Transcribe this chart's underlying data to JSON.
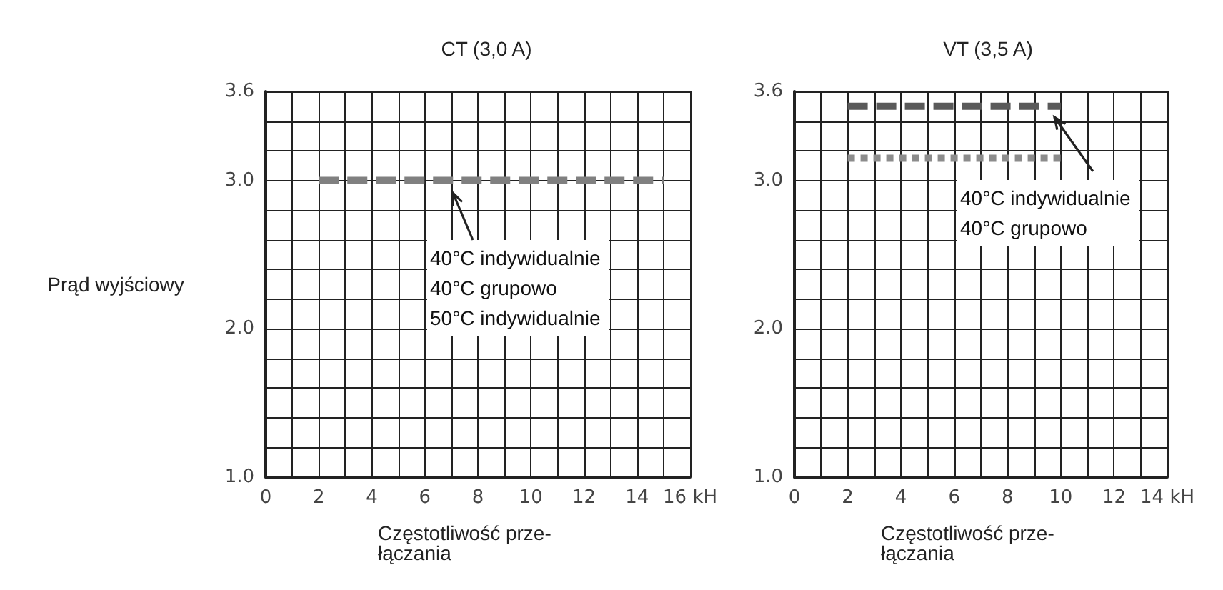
{
  "chart_data": [
    {
      "type": "line",
      "title": "CT (3,0 A)",
      "ylabel": "Prąd wyjściowy",
      "xlabel": "Częstotliwość prze-\nłączania",
      "xlim": [
        0,
        16
      ],
      "xticks": [
        0,
        {
          "value": 1,
          "label": null
        },
        2,
        {
          "value": 3,
          "label": null
        },
        4,
        {
          "value": 5,
          "label": null
        },
        6,
        {
          "value": 7,
          "label": null
        },
        8,
        {
          "value": 9,
          "label": null
        },
        10,
        {
          "value": 11,
          "label": null
        },
        12,
        {
          "value": 13,
          "label": null
        },
        14,
        {
          "value": 15,
          "label": null
        },
        {
          "value": 16,
          "label": "16 kH"
        }
      ],
      "ylim": [
        1.0,
        3.6
      ],
      "yticks": [
        {
          "value": 1.0,
          "label": "1.0"
        },
        {
          "value": 1.2,
          "label": null
        },
        {
          "value": 1.4,
          "label": null
        },
        {
          "value": 1.6,
          "label": null
        },
        {
          "value": 1.8,
          "label": null
        },
        {
          "value": 2.0,
          "label": "2.0"
        },
        {
          "value": 2.2,
          "label": null
        },
        {
          "value": 2.4,
          "label": null
        },
        {
          "value": 2.6,
          "label": null
        },
        {
          "value": 2.8,
          "label": null
        },
        {
          "value": 3.0,
          "label": "3.0"
        },
        {
          "value": 3.2,
          "label": null
        },
        {
          "value": 3.4,
          "label": null
        },
        3.6
      ],
      "grid": true,
      "line_style": "dashed",
      "series": [
        {
          "color": "#808080",
          "x": [
            2,
            15
          ],
          "values": [
            3.0,
            3.0
          ]
        }
      ],
      "annotations": [
        "40°C indywidualnie\n40°C grupowo\n50°C indywidualnie"
      ]
    },
    {
      "type": "line",
      "title": "VT (3,5 A)",
      "xlabel": "Częstotliwość prze-\nłączania",
      "xlim": [
        0,
        14
      ],
      "xticks": [
        0,
        {
          "value": 1,
          "label": null
        },
        2,
        {
          "value": 3,
          "label": null
        },
        4,
        {
          "value": 5,
          "label": null
        },
        6,
        {
          "value": 7,
          "label": null
        },
        8,
        {
          "value": 9,
          "label": null
        },
        10,
        {
          "value": 11,
          "label": null
        },
        12,
        {
          "value": 13,
          "label": null
        },
        {
          "value": 14,
          "label": "14 kH"
        }
      ],
      "ylim": [
        1.0,
        3.6
      ],
      "yticks": [
        {
          "value": 1.0,
          "label": "1.0"
        },
        {
          "value": 1.2,
          "label": null
        },
        {
          "value": 1.4,
          "label": null
        },
        {
          "value": 1.6,
          "label": null
        },
        {
          "value": 1.8,
          "label": null
        },
        {
          "value": 2.0,
          "label": "2.0"
        },
        {
          "value": 2.2,
          "label": null
        },
        {
          "value": 2.4,
          "label": null
        },
        {
          "value": 2.6,
          "label": null
        },
        {
          "value": 2.8,
          "label": null
        },
        {
          "value": 3.0,
          "label": "3.0"
        },
        {
          "value": 3.2,
          "label": null
        },
        {
          "value": 3.4,
          "label": null
        },
        3.6
      ],
      "grid": true,
      "series": [
        {
          "color": "#5a5a5a",
          "line_style": "dashed",
          "x": [
            2,
            10
          ],
          "values": [
            3.5,
            3.5
          ]
        },
        {
          "color": "#8c8c8c",
          "line_style": "dotted",
          "x": [
            2,
            10
          ],
          "values": [
            3.15,
            3.15
          ]
        }
      ],
      "annotations": [
        "40°C indywidualnie\n40°C grupowo"
      ]
    }
  ]
}
